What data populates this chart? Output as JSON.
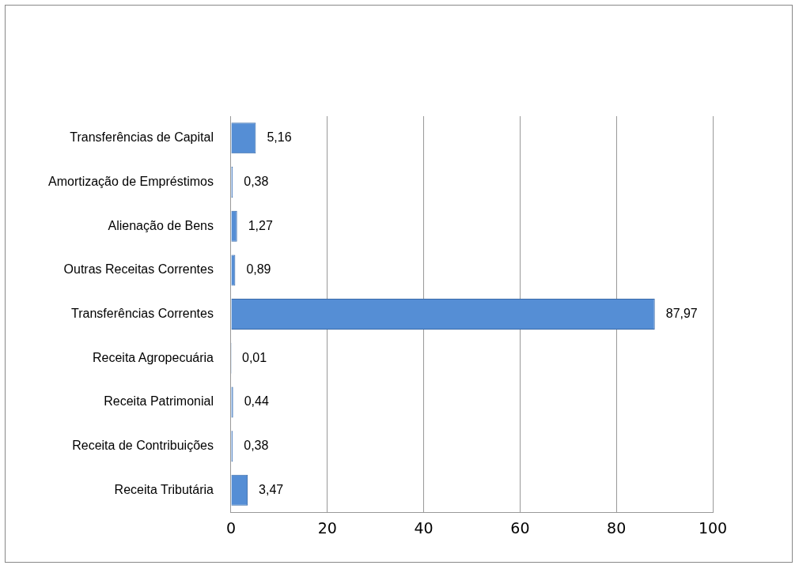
{
  "chart_data": {
    "type": "bar",
    "orientation": "horizontal",
    "categories": [
      "Transferências de Capital",
      "Amortização de Empréstimos",
      "Alienação de Bens",
      "Outras Receitas Correntes",
      "Transferências Correntes",
      "Receita Agropecuária",
      "Receita Patrimonial",
      "Receita de Contribuições",
      "Receita Tributária"
    ],
    "values": [
      5.16,
      0.38,
      1.27,
      0.89,
      87.97,
      0.01,
      0.44,
      0.38,
      3.47
    ],
    "value_labels": [
      "5,16",
      "0,38",
      "1,27",
      "0,89",
      "87,97",
      "0,01",
      "0,44",
      "0,38",
      "3,47"
    ],
    "color": "#558ed5",
    "xlim": [
      0,
      100
    ],
    "xticks": [
      0,
      20,
      40,
      60,
      80,
      100
    ],
    "grid": "x",
    "legend": false
  }
}
